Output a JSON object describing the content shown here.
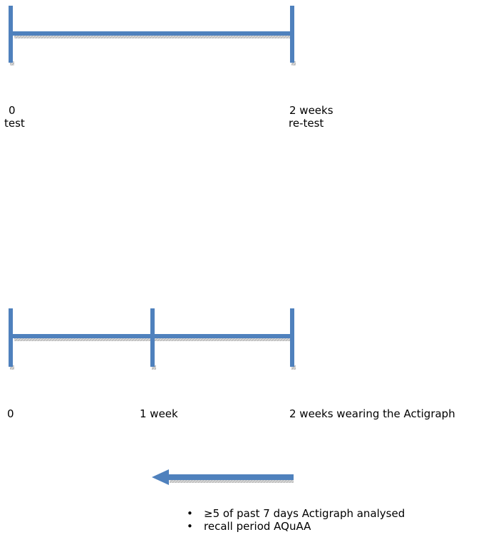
{
  "colors": {
    "line": "#4f81bd",
    "shadow": "#c8c8c8",
    "text": "#000000"
  },
  "timeline1": {
    "start_value": "0",
    "start_caption": "test",
    "end_value": "2 weeks",
    "end_caption": "re-test"
  },
  "timeline2": {
    "start_value": "0",
    "mid_value": "1 week",
    "end_value": "2 weeks wearing the Actigraph"
  },
  "arrow": {
    "direction": "left"
  },
  "notes": [
    "≥5 of past 7 days Actigraph analysed",
    "recall period AQuAA"
  ]
}
